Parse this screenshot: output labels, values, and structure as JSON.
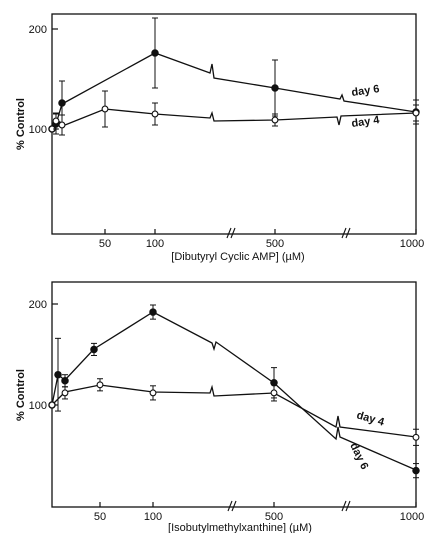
{
  "chart_data": [
    {
      "type": "line",
      "ylabel": "% Control",
      "xlabel": "[Dibutyryl Cyclic AMP] (µM)",
      "x_ticks": [
        "50",
        "100",
        "500",
        "1000"
      ],
      "y_ticks": [
        "100",
        "200"
      ],
      "ylim": [
        0,
        220
      ],
      "x_scale": "broken",
      "series": [
        {
          "name": "day 6",
          "marker": "filled",
          "x": [
            0,
            5,
            10,
            100,
            500,
            1000
          ],
          "y": [
            100,
            105,
            126,
            176,
            141,
            117
          ],
          "err": [
            0,
            10,
            22,
            35,
            28,
            12
          ]
        },
        {
          "name": "day 4",
          "marker": "open",
          "x": [
            0,
            5,
            10,
            50,
            100,
            500,
            1000
          ],
          "y": [
            100,
            108,
            104,
            120,
            115,
            109,
            116
          ],
          "err": [
            0,
            8,
            10,
            18,
            11,
            6,
            8
          ]
        }
      ]
    },
    {
      "type": "line",
      "ylabel": "% Control",
      "xlabel": "[Isobutylmethylxanthine] (µM)",
      "x_ticks": [
        "50",
        "100",
        "500",
        "1000"
      ],
      "y_ticks": [
        "100",
        "200"
      ],
      "ylim": [
        0,
        220
      ],
      "x_scale": "broken",
      "series": [
        {
          "name": "day 6",
          "marker": "filled",
          "x": [
            0,
            5,
            10,
            30,
            100,
            500,
            1000
          ],
          "y": [
            100,
            130,
            124,
            155,
            192,
            122,
            35
          ],
          "err": [
            0,
            36,
            6,
            6,
            7,
            15,
            7
          ]
        },
        {
          "name": "day 4",
          "marker": "open",
          "x": [
            0,
            10,
            50,
            100,
            500,
            1000
          ],
          "y": [
            100,
            112,
            120,
            112,
            112,
            68
          ],
          "err": [
            0,
            6,
            6,
            7,
            8,
            8
          ]
        }
      ]
    }
  ]
}
